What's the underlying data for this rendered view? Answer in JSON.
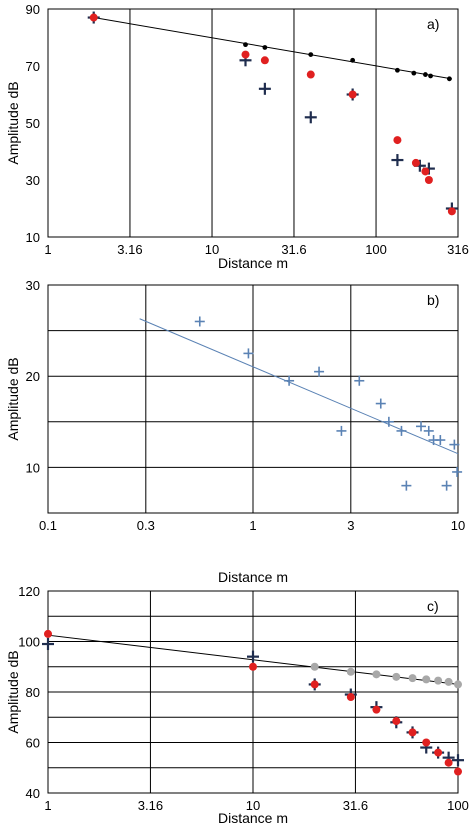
{
  "chart_data": [
    {
      "panel_label": "a)",
      "type": "scatter",
      "xlabel": "Distance  m",
      "ylabel": "Amplitude  dB",
      "x_scale": "log",
      "xlim": [
        1,
        316
      ],
      "ylim": [
        10,
        90
      ],
      "x_ticks": [
        "1",
        "3.16",
        "10",
        "31.6",
        "100",
        "316"
      ],
      "y_ticks": [
        "10",
        "30",
        "50",
        "70",
        "90"
      ],
      "grid": "vertical",
      "series": [
        {
          "marker": "plus",
          "color": "#1f2d4e",
          "points": [
            [
              1.9,
              87
            ],
            [
              16,
              72
            ],
            [
              21,
              62
            ],
            [
              40,
              52
            ],
            [
              72,
              60
            ],
            [
              135,
              37
            ],
            [
              185,
              35
            ],
            [
              210,
              34
            ],
            [
              290,
              20
            ]
          ]
        },
        {
          "marker": "dot",
          "color": "#e02020",
          "points": [
            [
              1.9,
              87
            ],
            [
              16,
              74
            ],
            [
              21,
              72
            ],
            [
              40,
              67
            ],
            [
              72,
              60
            ],
            [
              135,
              44
            ],
            [
              175,
              36
            ],
            [
              200,
              33
            ],
            [
              210,
              30
            ],
            [
              290,
              19
            ]
          ]
        },
        {
          "marker": "small-dot",
          "color": "#000000",
          "points": [
            [
              16,
              77.5
            ],
            [
              21,
              76.5
            ],
            [
              40,
              74
            ],
            [
              72,
              72
            ],
            [
              135,
              68.5
            ],
            [
              170,
              67.5
            ],
            [
              200,
              67
            ],
            [
              215,
              66.5
            ],
            [
              280,
              65.5
            ]
          ]
        }
      ],
      "trendline": {
        "color": "#000000",
        "from": [
          1.9,
          87
        ],
        "to": [
          290,
          65.5
        ]
      }
    },
    {
      "panel_label": "b)",
      "type": "scatter",
      "xlabel": "Distance  m",
      "ylabel": "Amplitude  dB",
      "x_scale": "log",
      "xlim": [
        0.1,
        10
      ],
      "ylim": [
        5,
        30
      ],
      "x_ticks": [
        "0.1",
        "0.3",
        "1",
        "3",
        "10"
      ],
      "y_ticks": [
        "10",
        "20",
        "30"
      ],
      "grid": "both",
      "series": [
        {
          "marker": "plus",
          "color": "#5a82b4",
          "points": [
            [
              0.55,
              26
            ],
            [
              0.95,
              22.5
            ],
            [
              1.5,
              19.5
            ],
            [
              2.1,
              20.5
            ],
            [
              2.7,
              14
            ],
            [
              3.3,
              19.5
            ],
            [
              4.2,
              17
            ],
            [
              4.6,
              15
            ],
            [
              5.3,
              14
            ],
            [
              5.6,
              8
            ],
            [
              6.6,
              14.5
            ],
            [
              7.2,
              14
            ],
            [
              7.6,
              13
            ],
            [
              8.2,
              13
            ],
            [
              8.8,
              8
            ],
            [
              9.6,
              12.5
            ],
            [
              9.9,
              9.5
            ]
          ]
        }
      ],
      "trendline": {
        "color": "#5a82b4",
        "from": [
          0.28,
          26.3
        ],
        "to": [
          10,
          11.5
        ]
      }
    },
    {
      "panel_label": "c)",
      "type": "scatter",
      "xlabel": "Distance  m",
      "ylabel": "Amplitude  dB",
      "x_scale": "log",
      "xlim": [
        1,
        100
      ],
      "ylim": [
        40,
        120
      ],
      "x_ticks": [
        "1",
        "3.16",
        "10",
        "31.6",
        "100"
      ],
      "y_ticks": [
        "40",
        "60",
        "80",
        "100",
        "120"
      ],
      "grid": "both",
      "series": [
        {
          "marker": "plus",
          "color": "#1f2d4e",
          "points": [
            [
              1,
              99
            ],
            [
              10,
              94
            ],
            [
              20,
              83
            ],
            [
              30,
              79
            ],
            [
              40,
              74
            ],
            [
              50,
              68
            ],
            [
              60,
              64
            ],
            [
              70,
              58
            ],
            [
              80,
              56
            ],
            [
              90,
              54
            ],
            [
              100,
              53
            ]
          ]
        },
        {
          "marker": "dot",
          "color": "#e02020",
          "points": [
            [
              1,
              103
            ],
            [
              10,
              90
            ],
            [
              20,
              83
            ],
            [
              30,
              78
            ],
            [
              40,
              73
            ],
            [
              50,
              68.5
            ],
            [
              60,
              64
            ],
            [
              70,
              60
            ],
            [
              80,
              56
            ],
            [
              90,
              52
            ],
            [
              100,
              48.5
            ]
          ]
        },
        {
          "marker": "dot",
          "color": "#a8a8a8",
          "points": [
            [
              20,
              90
            ],
            [
              30,
              88
            ],
            [
              40,
              87
            ],
            [
              50,
              86
            ],
            [
              60,
              85.5
            ],
            [
              70,
              85
            ],
            [
              80,
              84.5
            ],
            [
              90,
              84
            ],
            [
              100,
              83
            ]
          ]
        }
      ],
      "trendline": {
        "color": "#000000",
        "from": [
          1,
          102.5
        ],
        "to": [
          100,
          83
        ]
      }
    }
  ]
}
